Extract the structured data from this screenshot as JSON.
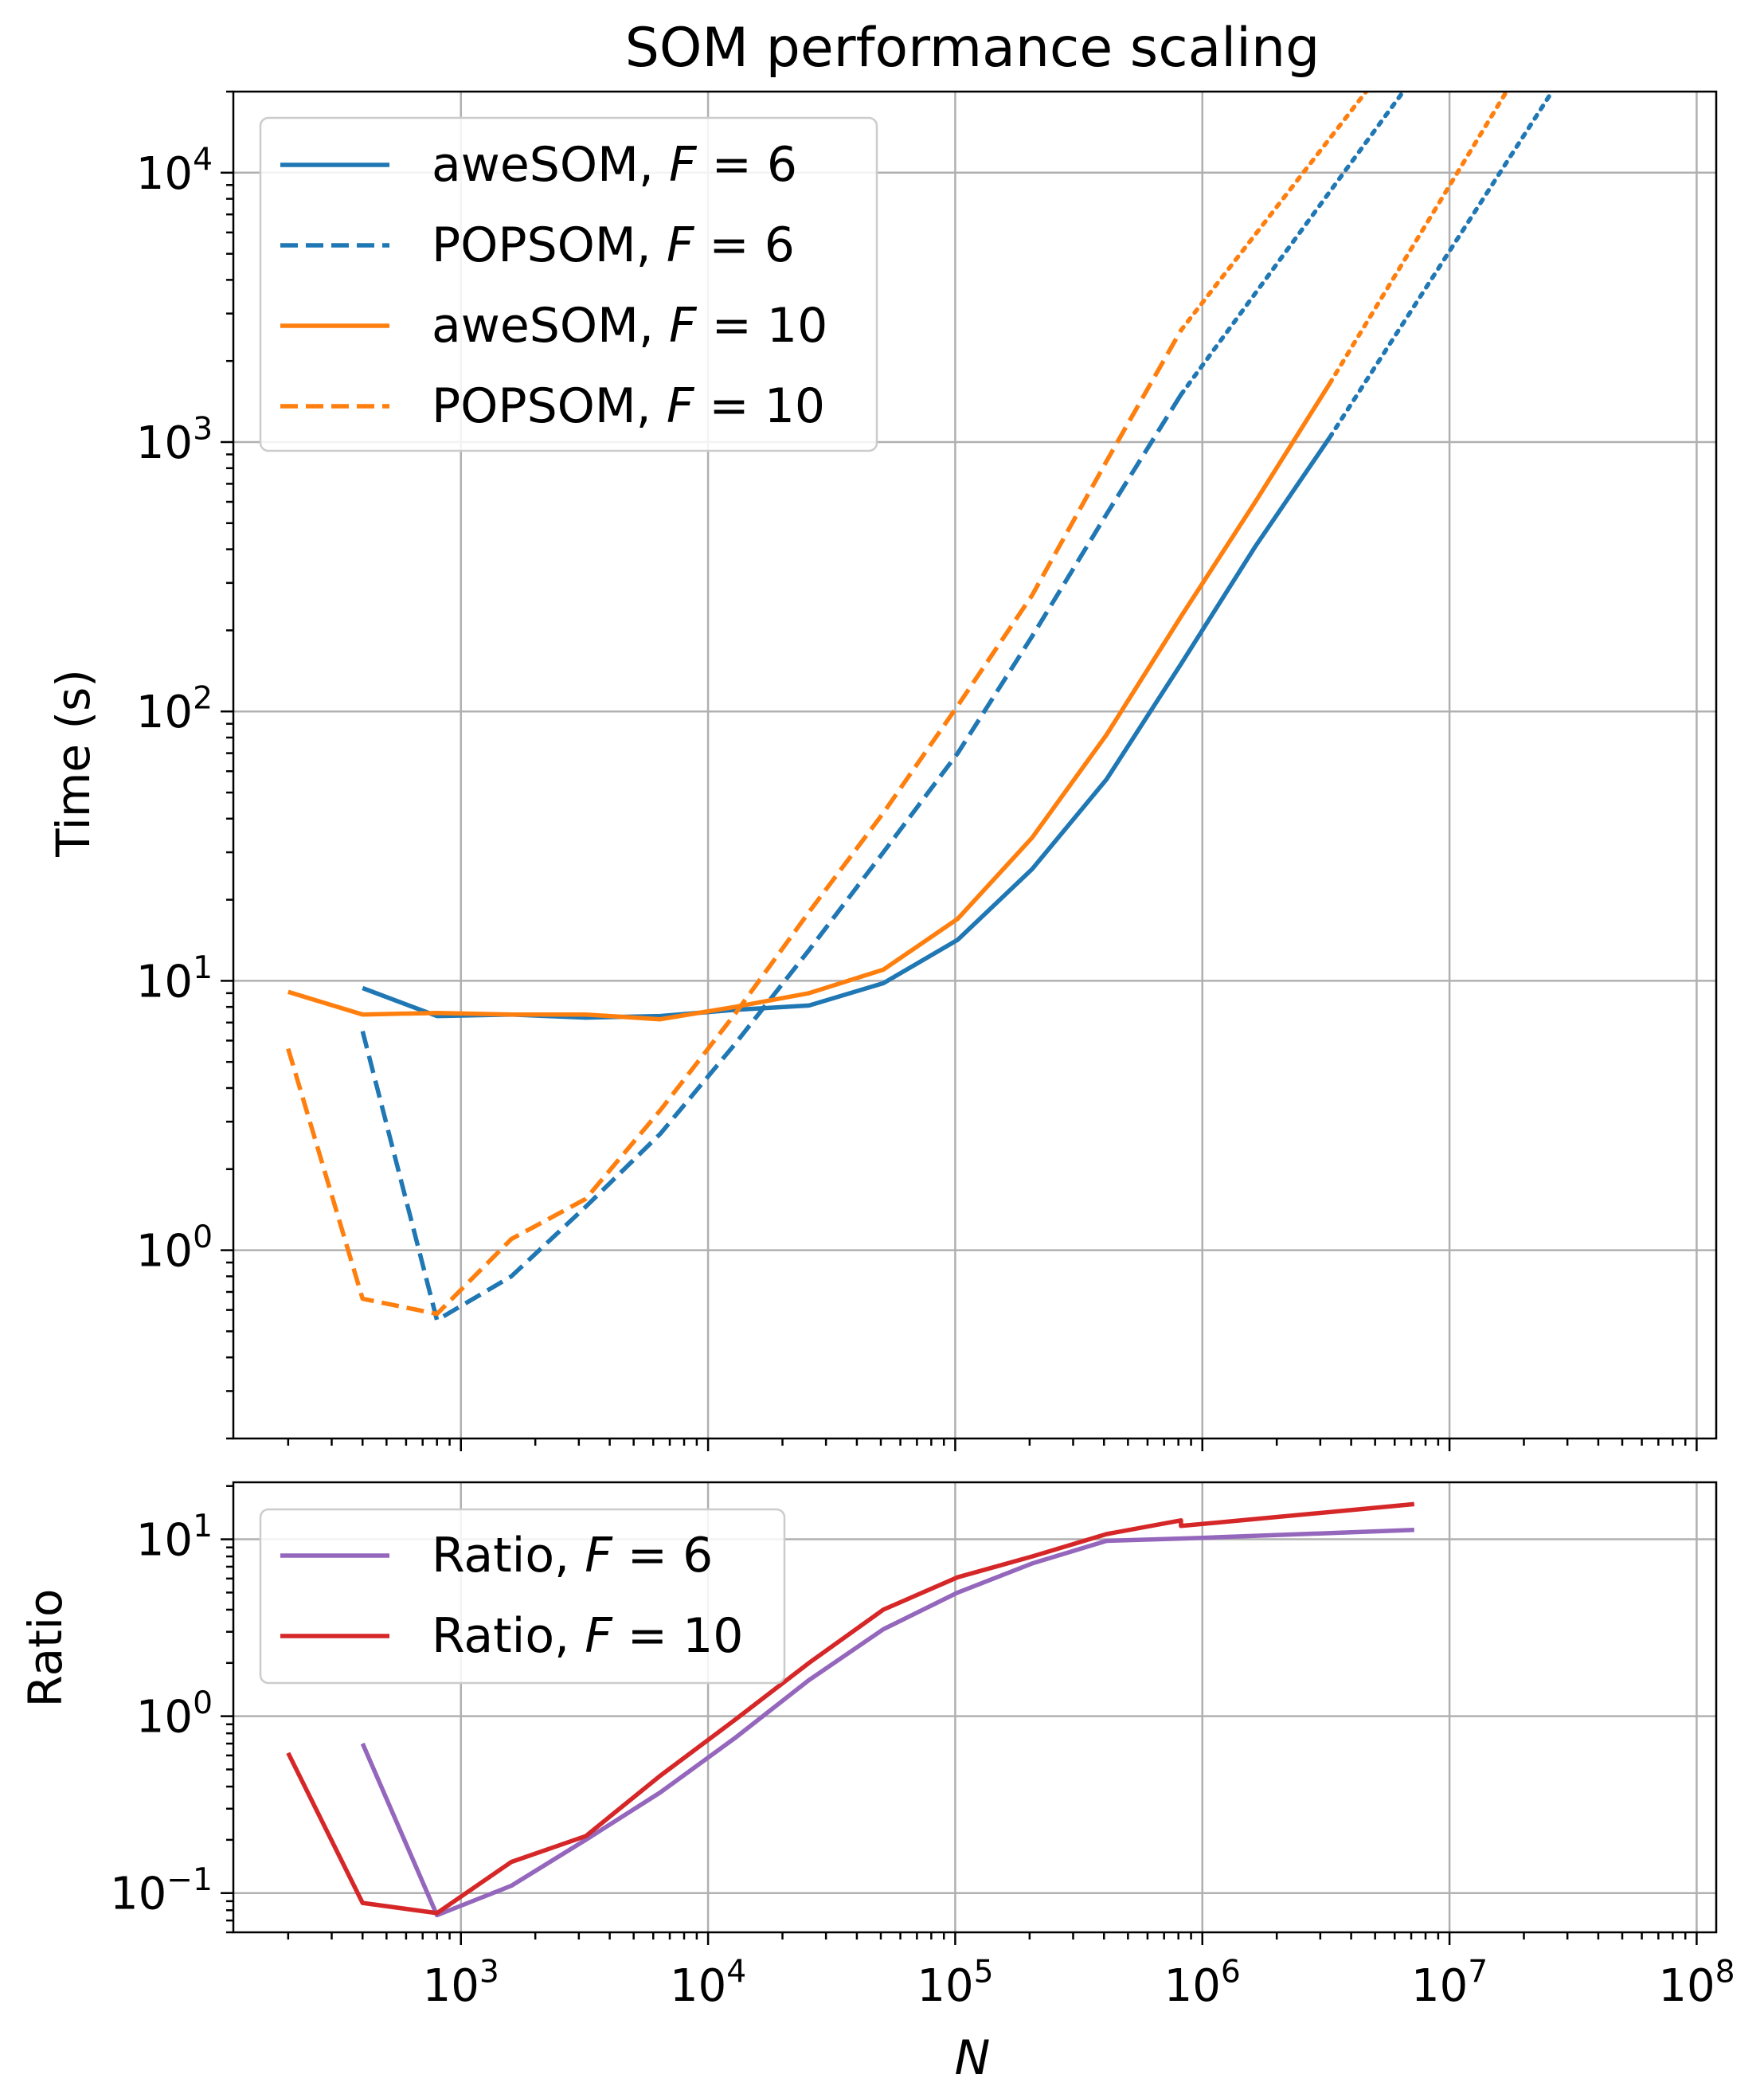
{
  "colors": {
    "blue": "#1f77b4",
    "orange": "#ff7f0e",
    "purple": "#9467bd",
    "red": "#d62728",
    "grid": "#b0b0b0",
    "legend_border": "#cccccc"
  },
  "chart_data": [
    {
      "type": "line",
      "title": "SOM performance scaling",
      "xlabel": "",
      "ylabel": "Time (s)",
      "xscale": "log",
      "yscale": "log",
      "xlim": [
        120,
        120000000
      ],
      "ylim": [
        0.2,
        20000
      ],
      "grid": true,
      "legend_position": "top-left",
      "yticks": [
        {
          "value": 1,
          "base": "10",
          "exp": "0"
        },
        {
          "value": 10,
          "base": "10",
          "exp": "1"
        },
        {
          "value": 100,
          "base": "10",
          "exp": "2"
        },
        {
          "value": 1000,
          "base": "10",
          "exp": "3"
        },
        {
          "value": 10000,
          "base": "10",
          "exp": "4"
        }
      ],
      "xgrid": [
        1000,
        10000,
        100000,
        1000000,
        10000000,
        100000000
      ],
      "series": [
        {
          "name": "aweSOM, F = 6",
          "label_prefix": "aweSOM, ",
          "label_var": "F",
          "label_rel": " = ",
          "label_val": "6",
          "color": "#1f77b4",
          "style": "solid",
          "in_legend": true,
          "points": [
            [
              400,
              9.4
            ],
            [
              800,
              7.4
            ],
            [
              1600,
              7.5
            ],
            [
              3200,
              7.3
            ],
            [
              6400,
              7.4
            ],
            [
              12800,
              7.8
            ],
            [
              25600,
              8.1
            ],
            [
              51200,
              9.8
            ],
            [
              102400,
              14.2
            ],
            [
              204800,
              26
            ],
            [
              409600,
              56
            ],
            [
              819200,
              150
            ],
            [
              1638400,
              410
            ],
            [
              3276800,
              1040
            ]
          ]
        },
        {
          "name": "aweSOM, F = 6 (extrapolated)",
          "color": "#1f77b4",
          "style": "dotted",
          "in_legend": false,
          "points": [
            [
              3276800,
              1040
            ],
            [
              26000000,
              20000
            ]
          ]
        },
        {
          "name": "POPSOM, F = 6",
          "label_prefix": "POPSOM, ",
          "label_var": "F",
          "label_rel": " = ",
          "label_val": "6",
          "color": "#1f77b4",
          "style": "dashed",
          "in_legend": true,
          "points": [
            [
              400,
              6.5
            ],
            [
              800,
              0.55
            ],
            [
              1600,
              0.8
            ],
            [
              3200,
              1.45
            ],
            [
              6400,
              2.7
            ],
            [
              12800,
              5.8
            ],
            [
              25600,
              13
            ],
            [
              51200,
              30
            ],
            [
              102400,
              70
            ],
            [
              204800,
              190
            ],
            [
              409600,
              540
            ],
            [
              819200,
              1500
            ]
          ]
        },
        {
          "name": "POPSOM, F = 6 (extrapolated)",
          "color": "#1f77b4",
          "style": "dotted",
          "in_legend": false,
          "points": [
            [
              819200,
              1500
            ],
            [
              6500000,
              20000
            ]
          ]
        },
        {
          "name": "aweSOM, F = 10",
          "label_prefix": "aweSOM, ",
          "label_var": "F",
          "label_rel": " = ",
          "label_val": "10",
          "color": "#ff7f0e",
          "style": "solid",
          "in_legend": true,
          "points": [
            [
              200,
              9.1
            ],
            [
              400,
              7.5
            ],
            [
              800,
              7.6
            ],
            [
              1600,
              7.5
            ],
            [
              3200,
              7.5
            ],
            [
              6400,
              7.2
            ],
            [
              12800,
              8.0
            ],
            [
              25600,
              9.0
            ],
            [
              51200,
              11
            ],
            [
              102400,
              17
            ],
            [
              204800,
              34
            ],
            [
              409600,
              82
            ],
            [
              819200,
              225
            ],
            [
              1638400,
              600
            ],
            [
              3276800,
              1650
            ]
          ]
        },
        {
          "name": "aweSOM, F = 10 (extrapolated)",
          "color": "#ff7f0e",
          "style": "dotted",
          "in_legend": false,
          "points": [
            [
              3276800,
              1650
            ],
            [
              17000000,
              20000
            ]
          ]
        },
        {
          "name": "POPSOM, F = 10",
          "label_prefix": "POPSOM, ",
          "label_var": "F",
          "label_rel": " = ",
          "label_val": "10",
          "color": "#ff7f0e",
          "style": "dashed",
          "in_legend": true,
          "points": [
            [
              200,
              5.6
            ],
            [
              400,
              0.66
            ],
            [
              800,
              0.58
            ],
            [
              1600,
              1.1
            ],
            [
              3200,
              1.55
            ],
            [
              6400,
              3.3
            ],
            [
              12800,
              7.5
            ],
            [
              25600,
              18
            ],
            [
              51200,
              42
            ],
            [
              102400,
              105
            ],
            [
              204800,
              270
            ],
            [
              409600,
              850
            ],
            [
              819200,
              2600
            ]
          ]
        },
        {
          "name": "POPSOM, F = 10 (extrapolated)",
          "color": "#ff7f0e",
          "style": "dotted",
          "in_legend": false,
          "points": [
            [
              819200,
              2600
            ],
            [
              4600000,
              20000
            ]
          ]
        }
      ]
    },
    {
      "type": "line",
      "title": "",
      "xlabel": "N",
      "ylabel": "Ratio",
      "xscale": "log",
      "yscale": "log",
      "xlim": [
        120,
        120000000
      ],
      "ylim": [
        0.06,
        21
      ],
      "grid": true,
      "legend_position": "top-left",
      "yticks": [
        {
          "value": 0.1,
          "base": "10",
          "exp": "−1"
        },
        {
          "value": 1,
          "base": "10",
          "exp": "0"
        },
        {
          "value": 10,
          "base": "10",
          "exp": "1"
        }
      ],
      "xticks": [
        {
          "value": 1000,
          "base": "10",
          "exp": "3"
        },
        {
          "value": 10000,
          "base": "10",
          "exp": "4"
        },
        {
          "value": 100000,
          "base": "10",
          "exp": "5"
        },
        {
          "value": 1000000,
          "base": "10",
          "exp": "6"
        },
        {
          "value": 10000000,
          "base": "10",
          "exp": "7"
        },
        {
          "value": 100000000,
          "base": "10",
          "exp": "8"
        }
      ],
      "series": [
        {
          "name": "Ratio, F = 6",
          "label_prefix": "Ratio, ",
          "label_var": "F",
          "label_rel": " = ",
          "label_val": "6",
          "color": "#9467bd",
          "style": "solid",
          "in_legend": true,
          "points": [
            [
              400,
              0.7
            ],
            [
              800,
              0.075
            ],
            [
              1600,
              0.11
            ],
            [
              3200,
              0.2
            ],
            [
              6400,
              0.37
            ],
            [
              12800,
              0.75
            ],
            [
              25600,
              1.6
            ],
            [
              51200,
              3.1
            ],
            [
              102400,
              5.0
            ],
            [
              204800,
              7.3
            ],
            [
              409600,
              9.8
            ],
            [
              819200,
              10.1
            ],
            [
              1000000,
              10.2
            ],
            [
              7200000,
              11.3
            ]
          ]
        },
        {
          "name": "Ratio, F = 10",
          "label_prefix": "Ratio, ",
          "label_var": "F",
          "label_rel": " = ",
          "label_val": "10",
          "color": "#d62728",
          "style": "solid",
          "in_legend": true,
          "points": [
            [
              200,
              0.62
            ],
            [
              400,
              0.088
            ],
            [
              800,
              0.077
            ],
            [
              1600,
              0.15
            ],
            [
              3200,
              0.21
            ],
            [
              6400,
              0.46
            ],
            [
              12800,
              0.95
            ],
            [
              25600,
              2.0
            ],
            [
              51200,
              4.0
            ],
            [
              102400,
              6.1
            ],
            [
              204800,
              8.0
            ],
            [
              409600,
              10.7
            ],
            [
              819200,
              12.8
            ],
            [
              819200,
              11.9
            ],
            [
              7200000,
              15.8
            ]
          ]
        }
      ]
    }
  ]
}
